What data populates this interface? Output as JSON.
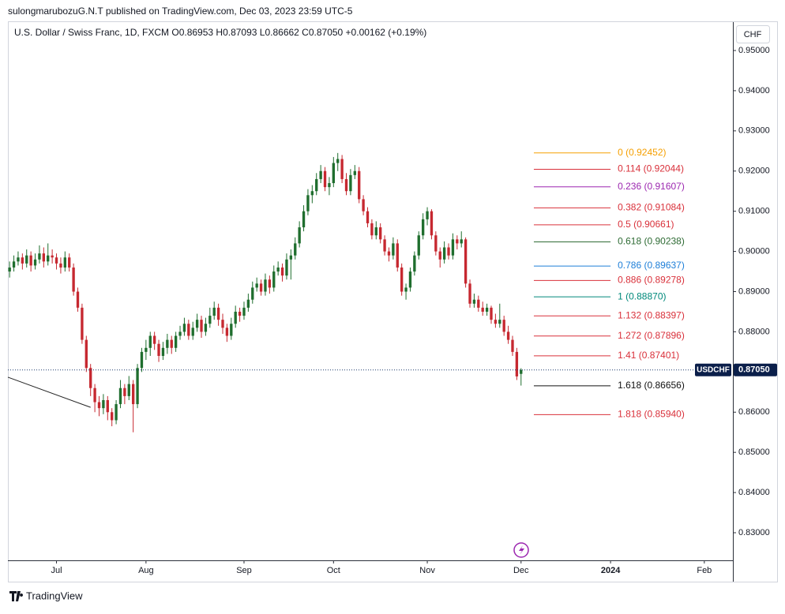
{
  "header": {
    "published": "sulongmarubozuG.N.T published on TradingView.com, Dec 03, 2023 23:59 UTC-5",
    "footer": "TradingView"
  },
  "chart_data": {
    "type": "candlestick",
    "legend": "U.S. Dollar / Swiss Franc, 1D, FXCM  O0.86953  H0.87093  L0.86662  C0.87050  +0.00162 (+0.19%)",
    "currency": "CHF",
    "symbol": "USDCHF",
    "last_price": {
      "value": 0.8705,
      "label": "0.87050"
    },
    "up_color": "#1f6e2e",
    "down_color": "#c62830",
    "ylim": [
      0.82313,
      0.95707
    ],
    "yticks": [
      {
        "value": 0.83,
        "label": "0.83000"
      },
      {
        "value": 0.84,
        "label": "0.84000"
      },
      {
        "value": 0.85,
        "label": "0.85000"
      },
      {
        "value": 0.86,
        "label": "0.86000"
      },
      {
        "value": 0.87,
        "label": "0.87000"
      },
      {
        "value": 0.88,
        "label": "0.88000"
      },
      {
        "value": 0.89,
        "label": "0.89000"
      },
      {
        "value": 0.9,
        "label": "0.90000"
      },
      {
        "value": 0.91,
        "label": "0.91000"
      },
      {
        "value": 0.92,
        "label": "0.92000"
      },
      {
        "value": 0.93,
        "label": "0.93000"
      },
      {
        "value": 0.94,
        "label": "0.94000"
      },
      {
        "value": 0.95,
        "label": "0.95000"
      }
    ],
    "xticks": [
      {
        "value": 11,
        "label": "Jul"
      },
      {
        "value": 32,
        "label": "Aug"
      },
      {
        "value": 55,
        "label": "Sep"
      },
      {
        "value": 76,
        "label": "Oct"
      },
      {
        "value": 98,
        "label": "Nov"
      },
      {
        "value": 120,
        "label": "Dec"
      },
      {
        "value": 141,
        "label": "2024"
      },
      {
        "value": 163,
        "label": "Feb"
      }
    ],
    "xlim": [
      -0.4,
      169.7
    ],
    "ohlc": [
      [
        0.895,
        0.8975,
        0.8935,
        0.896
      ],
      [
        0.896,
        0.899,
        0.895,
        0.8975
      ],
      [
        0.8975,
        0.9,
        0.8965,
        0.8985
      ],
      [
        0.8985,
        0.8995,
        0.8955,
        0.897
      ],
      [
        0.897,
        0.9005,
        0.896,
        0.899
      ],
      [
        0.899,
        0.9,
        0.895,
        0.8965
      ],
      [
        0.8965,
        0.8995,
        0.8955,
        0.898
      ],
      [
        0.898,
        0.9015,
        0.897,
        0.8995
      ],
      [
        0.8995,
        0.901,
        0.896,
        0.8975
      ],
      [
        0.8975,
        0.902,
        0.8965,
        0.899
      ],
      [
        0.899,
        0.9005,
        0.897,
        0.8985
      ],
      [
        0.8985,
        0.8995,
        0.8955,
        0.897
      ],
      [
        0.897,
        0.8985,
        0.8945,
        0.896
      ],
      [
        0.896,
        0.9,
        0.895,
        0.8985
      ],
      [
        0.8985,
        0.8995,
        0.895,
        0.896
      ],
      [
        0.896,
        0.897,
        0.889,
        0.89
      ],
      [
        0.89,
        0.891,
        0.885,
        0.886
      ],
      [
        0.886,
        0.887,
        0.877,
        0.878
      ],
      [
        0.878,
        0.879,
        0.87,
        0.871
      ],
      [
        0.871,
        0.872,
        0.864,
        0.866
      ],
      [
        0.866,
        0.867,
        0.86,
        0.8625
      ],
      [
        0.8625,
        0.864,
        0.859,
        0.861
      ],
      [
        0.861,
        0.8645,
        0.8595,
        0.863
      ],
      [
        0.863,
        0.864,
        0.858,
        0.86
      ],
      [
        0.86,
        0.861,
        0.8565,
        0.858
      ],
      [
        0.858,
        0.863,
        0.857,
        0.862
      ],
      [
        0.862,
        0.868,
        0.861,
        0.866
      ],
      [
        0.866,
        0.867,
        0.862,
        0.864
      ],
      [
        0.864,
        0.869,
        0.863,
        0.867
      ],
      [
        0.867,
        0.868,
        0.855,
        0.862
      ],
      [
        0.862,
        0.872,
        0.861,
        0.871
      ],
      [
        0.871,
        0.876,
        0.87,
        0.875
      ],
      [
        0.875,
        0.878,
        0.873,
        0.876
      ],
      [
        0.876,
        0.88,
        0.874,
        0.879
      ],
      [
        0.879,
        0.88,
        0.8755,
        0.877
      ],
      [
        0.877,
        0.878,
        0.8725,
        0.874
      ],
      [
        0.874,
        0.8775,
        0.873,
        0.876
      ],
      [
        0.876,
        0.8795,
        0.8745,
        0.878
      ],
      [
        0.878,
        0.879,
        0.8745,
        0.876
      ],
      [
        0.876,
        0.88,
        0.875,
        0.879
      ],
      [
        0.879,
        0.8815,
        0.878,
        0.88
      ],
      [
        0.88,
        0.8835,
        0.879,
        0.882
      ],
      [
        0.882,
        0.883,
        0.878,
        0.879
      ],
      [
        0.879,
        0.8825,
        0.878,
        0.881
      ],
      [
        0.881,
        0.8845,
        0.88,
        0.883
      ],
      [
        0.883,
        0.884,
        0.8785,
        0.88
      ],
      [
        0.88,
        0.8835,
        0.879,
        0.882
      ],
      [
        0.882,
        0.886,
        0.881,
        0.884
      ],
      [
        0.884,
        0.8875,
        0.883,
        0.886
      ],
      [
        0.886,
        0.887,
        0.8815,
        0.883
      ],
      [
        0.883,
        0.8845,
        0.8795,
        0.881
      ],
      [
        0.881,
        0.882,
        0.8775,
        0.879
      ],
      [
        0.879,
        0.8835,
        0.878,
        0.882
      ],
      [
        0.882,
        0.8865,
        0.881,
        0.885
      ],
      [
        0.885,
        0.886,
        0.8825,
        0.884
      ],
      [
        0.884,
        0.8875,
        0.883,
        0.886
      ],
      [
        0.886,
        0.8895,
        0.885,
        0.888
      ],
      [
        0.888,
        0.8925,
        0.887,
        0.891
      ],
      [
        0.891,
        0.8935,
        0.89,
        0.892
      ],
      [
        0.892,
        0.893,
        0.889,
        0.89
      ],
      [
        0.89,
        0.8945,
        0.889,
        0.893
      ],
      [
        0.893,
        0.894,
        0.8895,
        0.891
      ],
      [
        0.891,
        0.8965,
        0.89,
        0.895
      ],
      [
        0.895,
        0.8975,
        0.894,
        0.896
      ],
      [
        0.896,
        0.897,
        0.8925,
        0.894
      ],
      [
        0.894,
        0.8995,
        0.893,
        0.898
      ],
      [
        0.898,
        0.9005,
        0.893,
        0.899
      ],
      [
        0.899,
        0.9035,
        0.898,
        0.902
      ],
      [
        0.902,
        0.9075,
        0.901,
        0.906
      ],
      [
        0.906,
        0.9115,
        0.905,
        0.91
      ],
      [
        0.91,
        0.9155,
        0.909,
        0.914
      ],
      [
        0.914,
        0.9165,
        0.912,
        0.915
      ],
      [
        0.915,
        0.9195,
        0.914,
        0.918
      ],
      [
        0.918,
        0.9215,
        0.917,
        0.92
      ],
      [
        0.92,
        0.921,
        0.915,
        0.916
      ],
      [
        0.916,
        0.9185,
        0.914,
        0.917
      ],
      [
        0.917,
        0.9235,
        0.916,
        0.922
      ],
      [
        0.922,
        0.9245,
        0.92,
        0.923
      ],
      [
        0.923,
        0.924,
        0.917,
        0.918
      ],
      [
        0.918,
        0.9195,
        0.914,
        0.915
      ],
      [
        0.915,
        0.9205,
        0.914,
        0.919
      ],
      [
        0.919,
        0.9215,
        0.918,
        0.92
      ],
      [
        0.92,
        0.921,
        0.912,
        0.913
      ],
      [
        0.913,
        0.914,
        0.909,
        0.91
      ],
      [
        0.91,
        0.911,
        0.906,
        0.907
      ],
      [
        0.907,
        0.908,
        0.903,
        0.904
      ],
      [
        0.904,
        0.9075,
        0.903,
        0.906
      ],
      [
        0.906,
        0.907,
        0.902,
        0.903
      ],
      [
        0.903,
        0.904,
        0.899,
        0.9
      ],
      [
        0.9,
        0.901,
        0.8975,
        0.899
      ],
      [
        0.899,
        0.9035,
        0.898,
        0.902
      ],
      [
        0.902,
        0.903,
        0.895,
        0.896
      ],
      [
        0.896,
        0.897,
        0.889,
        0.89
      ],
      [
        0.89,
        0.892,
        0.888,
        0.891
      ],
      [
        0.891,
        0.896,
        0.89,
        0.895
      ],
      [
        0.895,
        0.9,
        0.894,
        0.899
      ],
      [
        0.899,
        0.905,
        0.898,
        0.904
      ],
      [
        0.904,
        0.9095,
        0.903,
        0.908
      ],
      [
        0.908,
        0.911,
        0.9065,
        0.91
      ],
      [
        0.91,
        0.9105,
        0.903,
        0.904
      ],
      [
        0.904,
        0.905,
        0.899,
        0.9
      ],
      [
        0.9,
        0.901,
        0.896,
        0.898
      ],
      [
        0.898,
        0.9025,
        0.897,
        0.901
      ],
      [
        0.901,
        0.902,
        0.898,
        0.899
      ],
      [
        0.899,
        0.9045,
        0.898,
        0.903
      ],
      [
        0.903,
        0.904,
        0.9005,
        0.902
      ],
      [
        0.902,
        0.905,
        0.901,
        0.903
      ],
      [
        0.903,
        0.9035,
        0.891,
        0.892
      ],
      [
        0.892,
        0.893,
        0.886,
        0.887
      ],
      [
        0.887,
        0.8895,
        0.886,
        0.888
      ],
      [
        0.888,
        0.889,
        0.885,
        0.886
      ],
      [
        0.886,
        0.8875,
        0.884,
        0.885
      ],
      [
        0.885,
        0.887,
        0.884,
        0.886
      ],
      [
        0.886,
        0.8865,
        0.882,
        0.883
      ],
      [
        0.883,
        0.8845,
        0.881,
        0.882
      ],
      [
        0.882,
        0.887,
        0.881,
        0.883
      ],
      [
        0.883,
        0.884,
        0.879,
        0.88
      ],
      [
        0.88,
        0.8815,
        0.877,
        0.878
      ],
      [
        0.878,
        0.879,
        0.874,
        0.875
      ],
      [
        0.875,
        0.876,
        0.868,
        0.8689
      ],
      [
        0.86953,
        0.87093,
        0.86662,
        0.8705
      ]
    ],
    "trendline": {
      "x": [
        -0.4,
        19
      ],
      "y": [
        0.8687,
        0.8612
      ],
      "color": "#222222"
    },
    "fib": {
      "x": [
        123,
        141
      ],
      "levels": [
        {
          "label": "0 (0.92452)",
          "value": 0.92452,
          "color": "#f59f00"
        },
        {
          "label": "0.114 (0.92044)",
          "value": 0.92044,
          "color": "#d9303a"
        },
        {
          "label": "0.236 (0.91607)",
          "value": 0.91607,
          "color": "#9c27b0"
        },
        {
          "label": "0.382 (0.91084)",
          "value": 0.91084,
          "color": "#d9303a"
        },
        {
          "label": "0.5 (0.90661)",
          "value": 0.90661,
          "color": "#d9303a"
        },
        {
          "label": "0.618 (0.90238)",
          "value": 0.90238,
          "color": "#2e6b34"
        },
        {
          "label": "0.786 (0.89637)",
          "value": 0.89637,
          "color": "#1e7fd8"
        },
        {
          "label": "0.886 (0.89278)",
          "value": 0.89278,
          "color": "#d9303a"
        },
        {
          "label": "1 (0.88870)",
          "value": 0.8887,
          "color": "#00897b"
        },
        {
          "label": "1.132 (0.88397)",
          "value": 0.88397,
          "color": "#d9303a"
        },
        {
          "label": "1.272 (0.87896)",
          "value": 0.87896,
          "color": "#d9303a"
        },
        {
          "label": "1.41 (0.87401)",
          "value": 0.87401,
          "color": "#d9303a"
        },
        {
          "label": "1.618 (0.86656)",
          "value": 0.86656,
          "color": "#111111"
        },
        {
          "label": "1.818 (0.85940)",
          "value": 0.8594,
          "color": "#d9303a"
        }
      ]
    }
  }
}
